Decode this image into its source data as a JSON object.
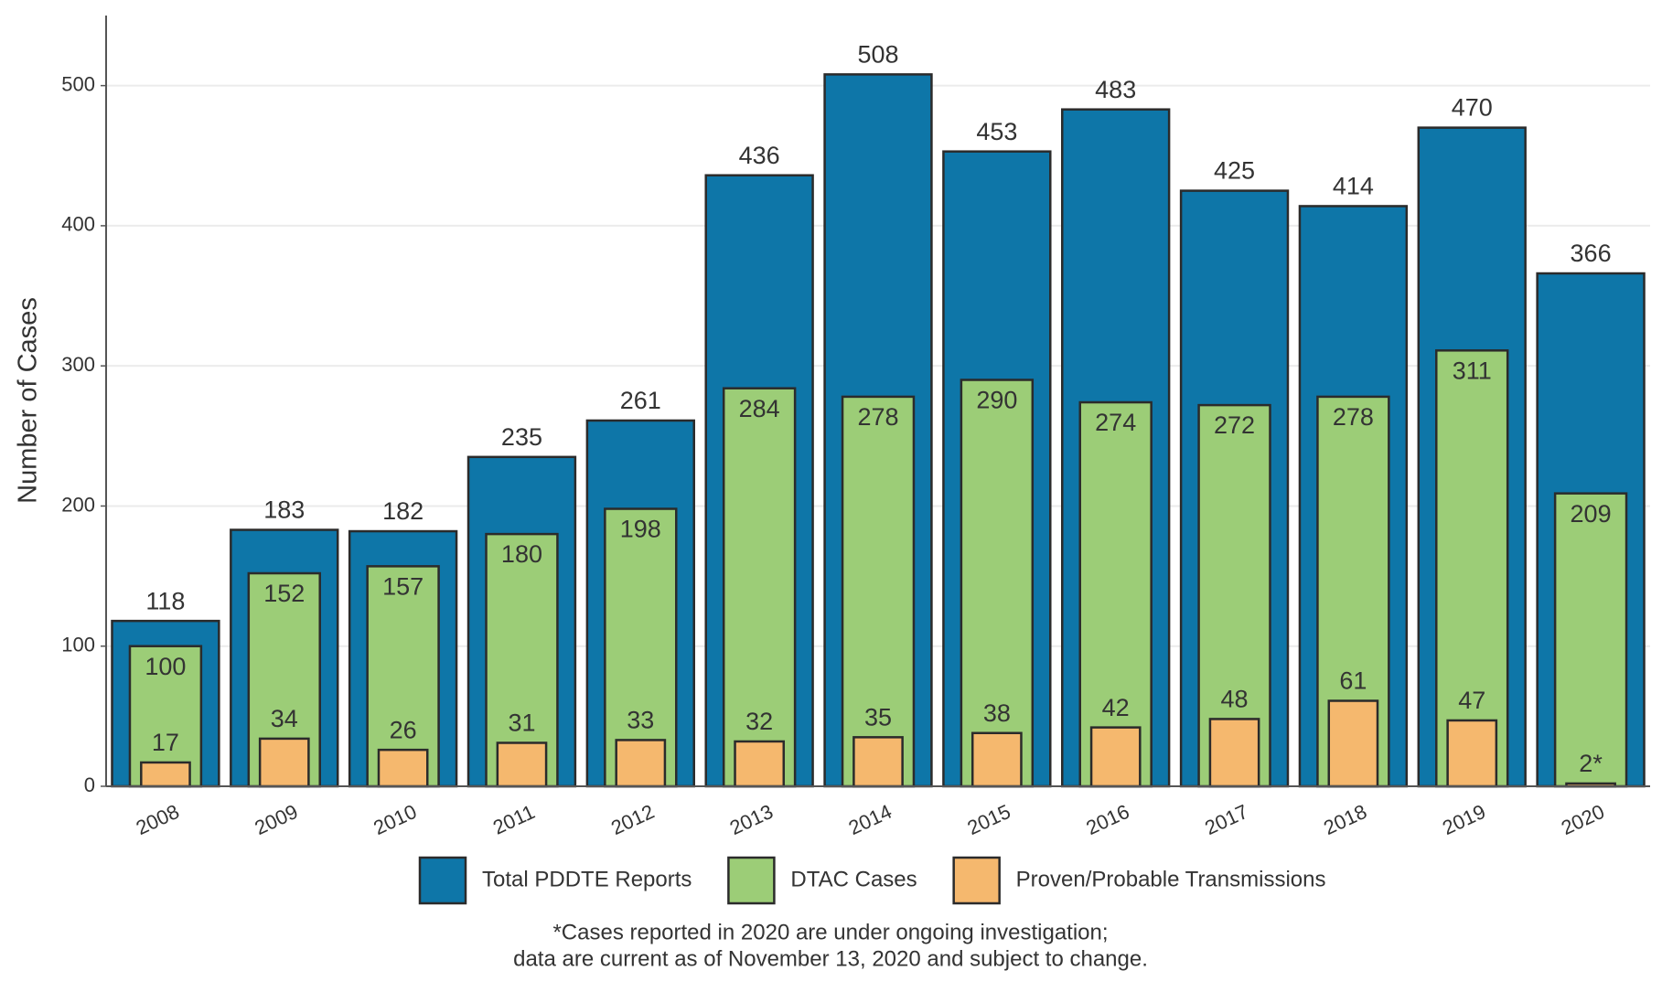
{
  "chart_data": {
    "type": "bar",
    "y_label": "Number of Cases",
    "categories": [
      "2008",
      "2009",
      "2010",
      "2011",
      "2012",
      "2013",
      "2014",
      "2015",
      "2016",
      "2017",
      "2018",
      "2019",
      "2020"
    ],
    "series": [
      {
        "name": "Total PDDTE Reports",
        "color": "#0e76a8",
        "values": [
          118,
          183,
          182,
          235,
          261,
          436,
          508,
          453,
          483,
          425,
          414,
          470,
          366
        ]
      },
      {
        "name": "DTAC Cases",
        "color": "#9ccd77",
        "values": [
          100,
          152,
          157,
          180,
          198,
          284,
          278,
          290,
          274,
          272,
          278,
          311,
          209
        ]
      },
      {
        "name": "Proven/Probable Transmissions",
        "color": "#f5b86e",
        "values": [
          17,
          34,
          26,
          31,
          33,
          32,
          35,
          38,
          42,
          48,
          61,
          47,
          2
        ],
        "value_labels": [
          "17",
          "34",
          "26",
          "31",
          "33",
          "32",
          "35",
          "38",
          "42",
          "48",
          "61",
          "47",
          "2*"
        ]
      }
    ],
    "ylim": [
      0,
      550
    ],
    "yticks": [
      0,
      100,
      200,
      300,
      400,
      500
    ],
    "grid": true,
    "legend": "bottom",
    "note": [
      "*Cases reported in 2020 are under ongoing investigation;",
      "data are current as of November 13, 2020 and subject to change."
    ]
  }
}
